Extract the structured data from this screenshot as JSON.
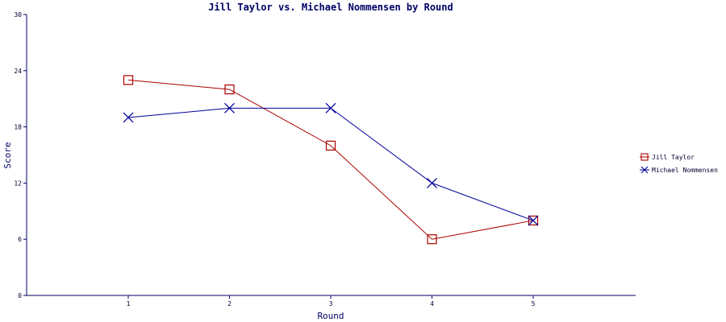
{
  "chart_data": {
    "type": "line",
    "title": "Jill Taylor vs. Michael Nommensen by Round",
    "xlabel": "Round",
    "ylabel": "Score",
    "categories": [
      "1",
      "2",
      "3",
      "4",
      "5"
    ],
    "yticks": [
      "0",
      "6",
      "12",
      "18",
      "24",
      "30"
    ],
    "ylim": [
      0,
      30
    ],
    "grid": false,
    "legend": "right",
    "series": [
      {
        "name": "Jill Taylor",
        "color": "#aa0000",
        "marker": "square",
        "values": [
          23,
          22,
          16,
          6,
          8
        ]
      },
      {
        "name": "Michael Nommensen",
        "color": "#000099",
        "marker": "x",
        "values": [
          19,
          20,
          20,
          12,
          8
        ]
      }
    ]
  }
}
